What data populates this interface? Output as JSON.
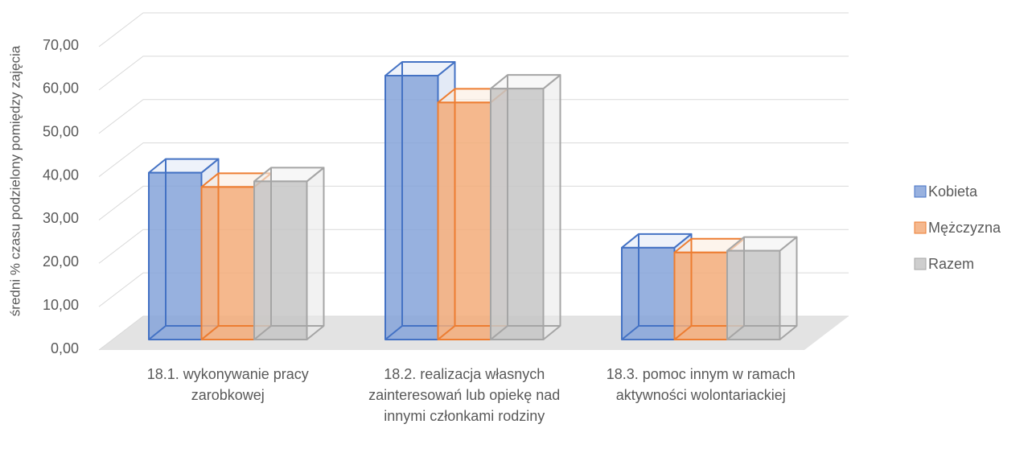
{
  "chart_data": {
    "type": "bar3d",
    "y_label": "średni % czasu podzielony pomiędzy zajęcia",
    "categories": [
      "18.1. wykonywanie pracy zarobkowej",
      "18.2. realizacja własnych zainteresowań lub opiekę nad innymi członkami rodziny",
      "18.3. pomoc innym w ramach aktywności wolontariackiej"
    ],
    "series": [
      {
        "name": "Kobieta",
        "color": "#4472c4",
        "values": [
          38.5,
          60.9,
          21.2
        ]
      },
      {
        "name": "Mężczyzna",
        "color": "#ed7d31",
        "values": [
          35.2,
          54.7,
          20.1
        ]
      },
      {
        "name": "Razem",
        "color": "#a5a5a5",
        "values": [
          36.5,
          57.9,
          20.5
        ]
      }
    ],
    "ylim": [
      0,
      70
    ],
    "yticks": [
      {
        "value": 0,
        "label": "0,00"
      },
      {
        "value": 10,
        "label": "10,00"
      },
      {
        "value": 20,
        "label": "20,00"
      },
      {
        "value": 30,
        "label": "30,00"
      },
      {
        "value": 40,
        "label": "40,00"
      },
      {
        "value": 50,
        "label": "50,00"
      },
      {
        "value": 60,
        "label": "60,00"
      },
      {
        "value": 70,
        "label": "70,00"
      }
    ],
    "grid": true,
    "legend": "right"
  }
}
